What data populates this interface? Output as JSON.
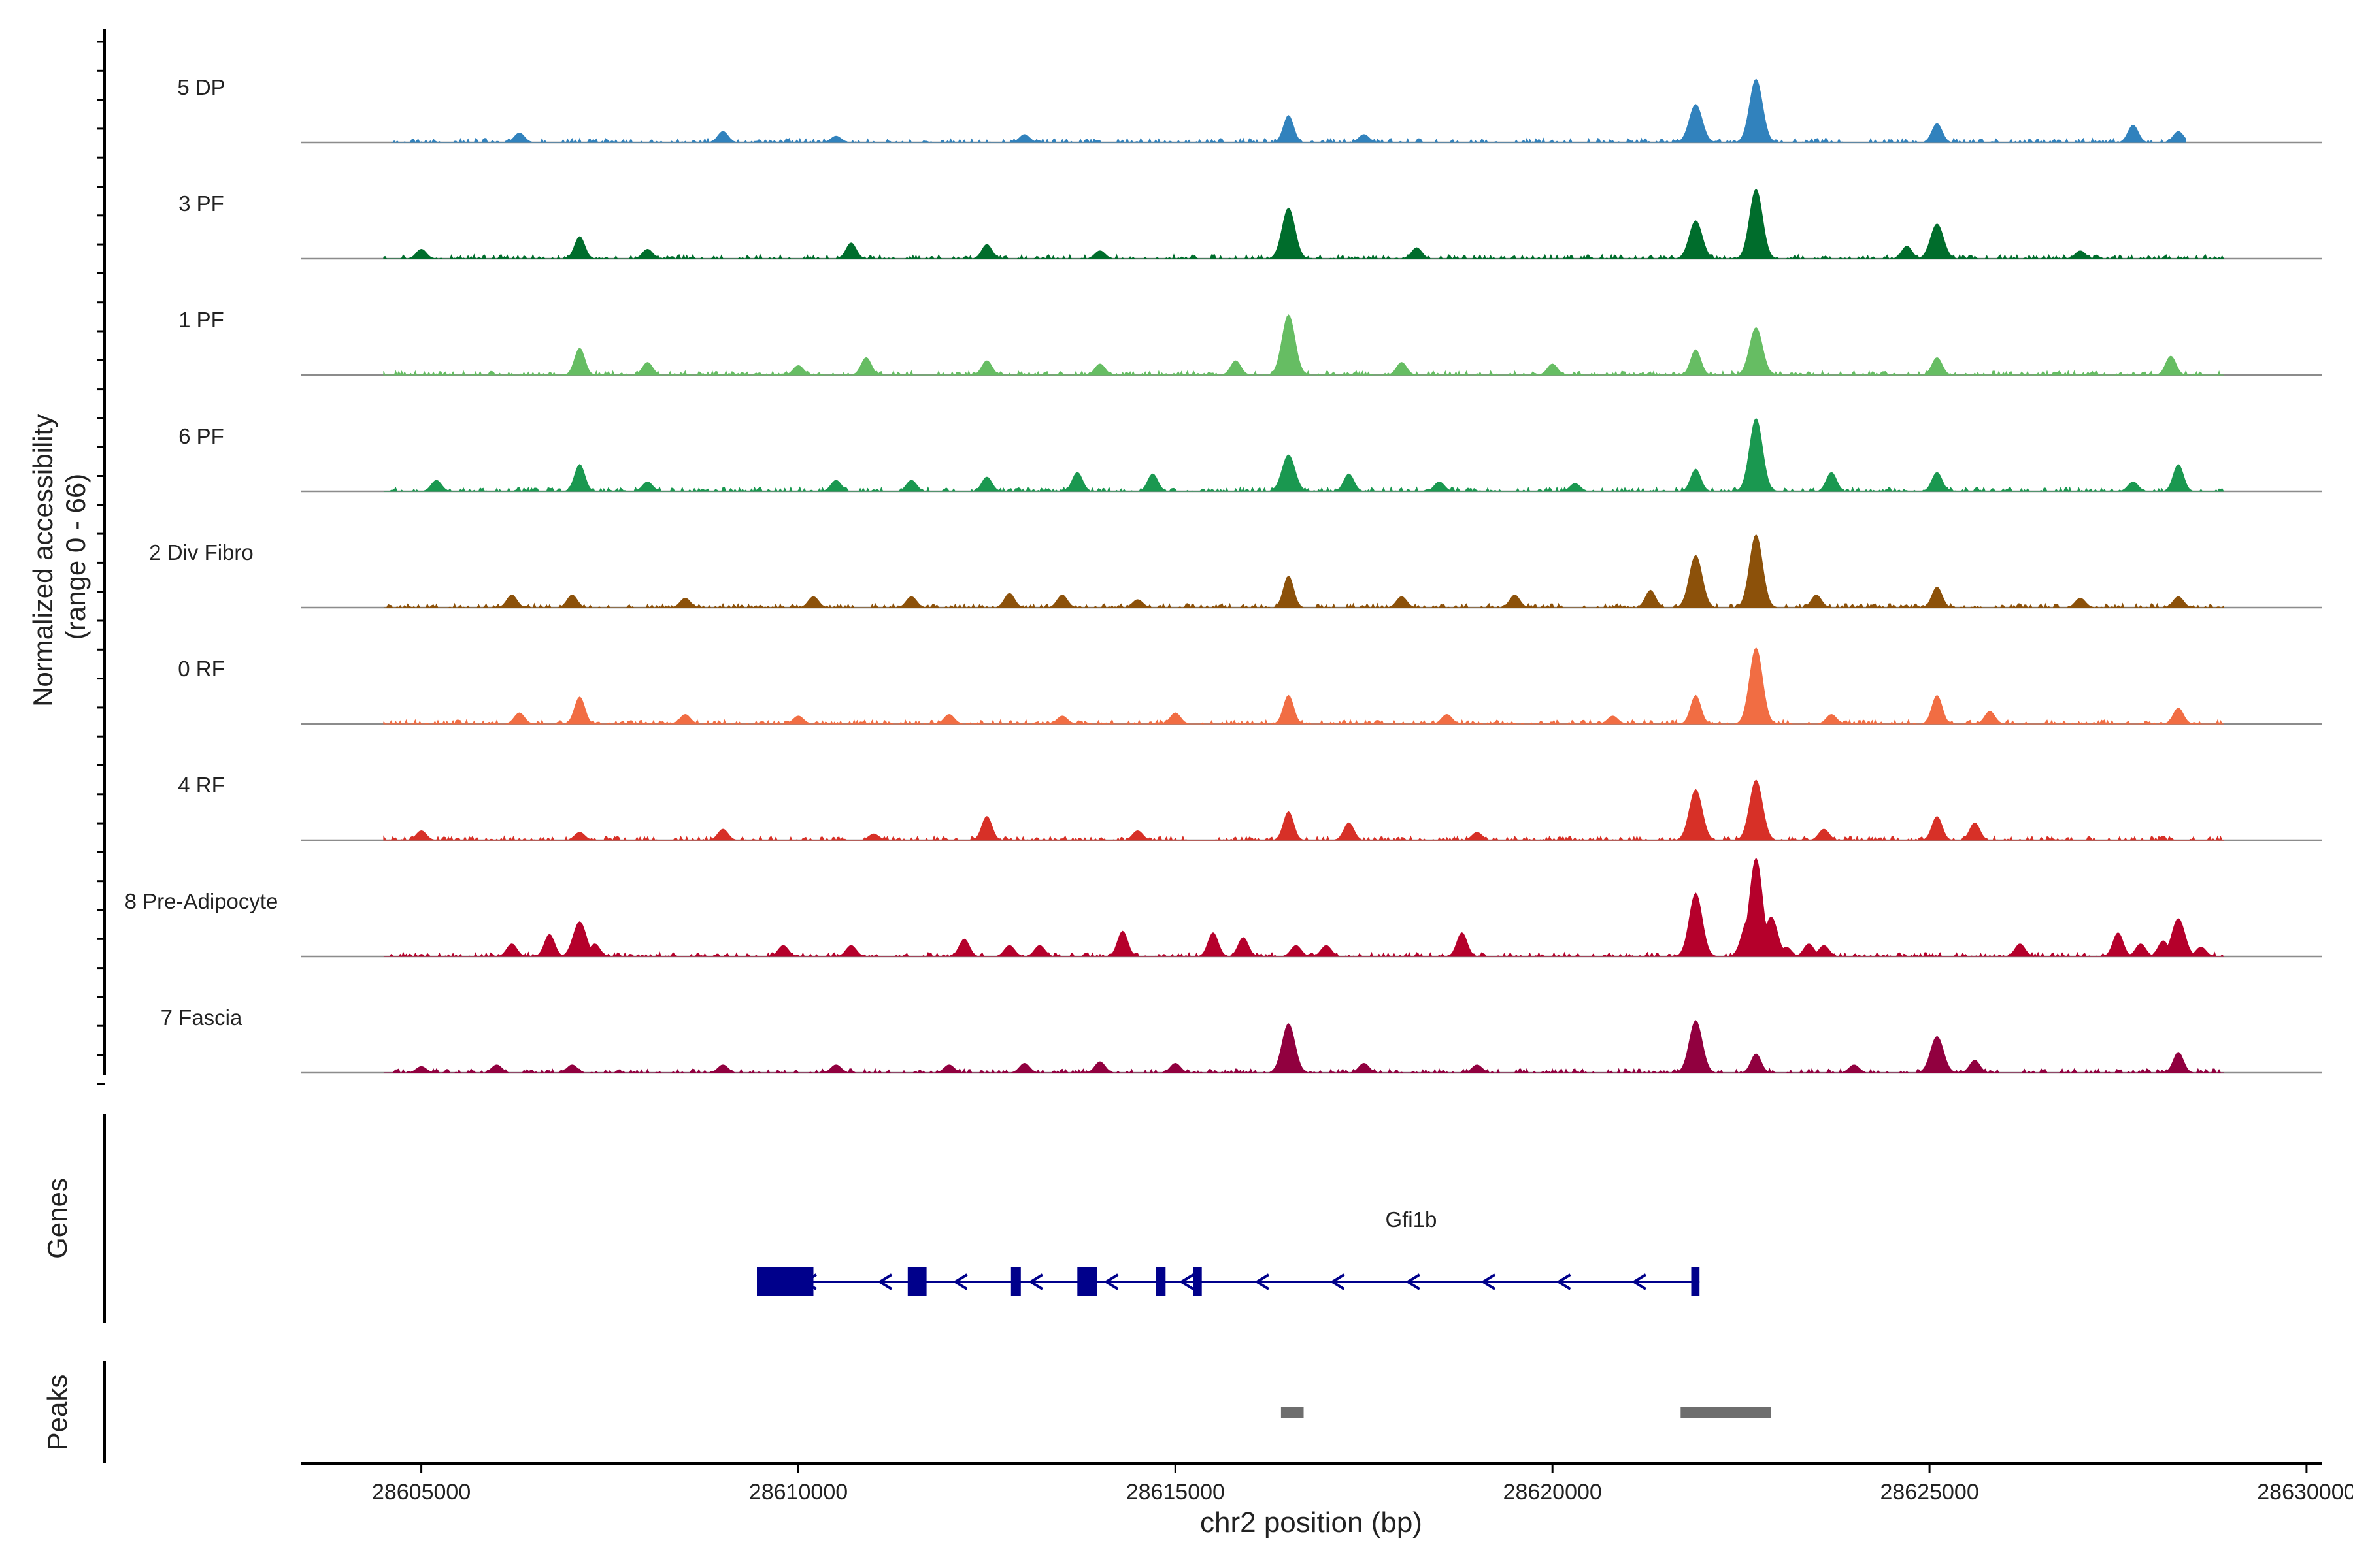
{
  "chart_data": {
    "type": "area",
    "title": "",
    "xlabel": "chr2 position (bp)",
    "ylabel": "Normalized accessibility\n(range 0 - 66)",
    "ylabel_lines": [
      "Normalized accessibility",
      "(range 0 - 66)"
    ],
    "xlim": [
      28603400,
      28630200
    ],
    "xticks": [
      28605000,
      28610000,
      28615000,
      28620000,
      28625000,
      28630000
    ],
    "xtick_labels": [
      "28605000",
      "28610000",
      "28615000",
      "28620000",
      "28625000",
      "28630000"
    ],
    "ylim": [
      0,
      66
    ],
    "tracks": [
      {
        "name": "5 DP",
        "color": "#3182bd",
        "start": 28604600,
        "end": 28628400,
        "peaks": [
          [
            28606300,
            6
          ],
          [
            28609000,
            7
          ],
          [
            28610500,
            4
          ],
          [
            28613000,
            5
          ],
          [
            28616500,
            17
          ],
          [
            28617500,
            5
          ],
          [
            28621900,
            24
          ],
          [
            28622700,
            40
          ],
          [
            28625100,
            12
          ],
          [
            28627700,
            11
          ],
          [
            28628300,
            7
          ]
        ]
      },
      {
        "name": "3 PF",
        "color": "#006d2c",
        "start": 28604500,
        "end": 28628900,
        "peaks": [
          [
            28605000,
            6
          ],
          [
            28607100,
            14
          ],
          [
            28608000,
            6
          ],
          [
            28610700,
            10
          ],
          [
            28612500,
            9
          ],
          [
            28614000,
            5
          ],
          [
            28616500,
            32
          ],
          [
            28618200,
            7
          ],
          [
            28621900,
            24
          ],
          [
            28622700,
            44
          ],
          [
            28624700,
            8
          ],
          [
            28625100,
            22
          ],
          [
            28627000,
            5
          ]
        ]
      },
      {
        "name": "1 PF",
        "color": "#66bd63",
        "start": 28604500,
        "end": 28628900,
        "peaks": [
          [
            28607100,
            17
          ],
          [
            28608000,
            8
          ],
          [
            28610000,
            6
          ],
          [
            28610900,
            11
          ],
          [
            28612500,
            9
          ],
          [
            28614000,
            7
          ],
          [
            28615800,
            9
          ],
          [
            28616500,
            38
          ],
          [
            28618000,
            8
          ],
          [
            28620000,
            7
          ],
          [
            28621900,
            16
          ],
          [
            28622700,
            30
          ],
          [
            28625100,
            11
          ],
          [
            28628200,
            12
          ]
        ]
      },
      {
        "name": "6 PF",
        "color": "#1a9850",
        "start": 28604500,
        "end": 28628900,
        "peaks": [
          [
            28605200,
            7
          ],
          [
            28607100,
            17
          ],
          [
            28608000,
            6
          ],
          [
            28610500,
            7
          ],
          [
            28611500,
            7
          ],
          [
            28612500,
            9
          ],
          [
            28613700,
            12
          ],
          [
            28614700,
            11
          ],
          [
            28616500,
            23
          ],
          [
            28617300,
            11
          ],
          [
            28618500,
            6
          ],
          [
            28620300,
            5
          ],
          [
            28621900,
            14
          ],
          [
            28622700,
            46
          ],
          [
            28623700,
            12
          ],
          [
            28625100,
            12
          ],
          [
            28627700,
            6
          ],
          [
            28628300,
            17
          ]
        ]
      },
      {
        "name": "2 Div Fibro",
        "color": "#8c510a",
        "start": 28604500,
        "end": 28628900,
        "peaks": [
          [
            28606200,
            8
          ],
          [
            28607000,
            8
          ],
          [
            28608500,
            6
          ],
          [
            28610200,
            7
          ],
          [
            28611500,
            7
          ],
          [
            28612800,
            9
          ],
          [
            28613500,
            8
          ],
          [
            28614500,
            5
          ],
          [
            28616500,
            20
          ],
          [
            28618000,
            7
          ],
          [
            28619500,
            8
          ],
          [
            28621300,
            11
          ],
          [
            28621900,
            33
          ],
          [
            28622700,
            46
          ],
          [
            28623500,
            8
          ],
          [
            28625100,
            13
          ],
          [
            28627000,
            6
          ],
          [
            28628300,
            7
          ]
        ]
      },
      {
        "name": "0 RF",
        "color": "#f16d43",
        "start": 28604500,
        "end": 28628900,
        "peaks": [
          [
            28606300,
            7
          ],
          [
            28607100,
            17
          ],
          [
            28608500,
            6
          ],
          [
            28610000,
            5
          ],
          [
            28612000,
            6
          ],
          [
            28613500,
            5
          ],
          [
            28615000,
            7
          ],
          [
            28616500,
            18
          ],
          [
            28618600,
            6
          ],
          [
            28620800,
            5
          ],
          [
            28621900,
            18
          ],
          [
            28622700,
            48
          ],
          [
            28623700,
            6
          ],
          [
            28625100,
            18
          ],
          [
            28625800,
            8
          ],
          [
            28628300,
            10
          ]
        ]
      },
      {
        "name": "4 RF",
        "color": "#d73027",
        "start": 28604500,
        "end": 28628900,
        "peaks": [
          [
            28605000,
            6
          ],
          [
            28607100,
            5
          ],
          [
            28609000,
            7
          ],
          [
            28611000,
            4
          ],
          [
            28612500,
            15
          ],
          [
            28614500,
            6
          ],
          [
            28616500,
            18
          ],
          [
            28617300,
            11
          ],
          [
            28619000,
            5
          ],
          [
            28621900,
            32
          ],
          [
            28622700,
            38
          ],
          [
            28623600,
            7
          ],
          [
            28625100,
            15
          ],
          [
            28625600,
            11
          ]
        ]
      },
      {
        "name": "8 Pre-Adipocyte",
        "color": "#b5002b",
        "start": 28604500,
        "end": 28628900,
        "peaks": [
          [
            28606200,
            8
          ],
          [
            28606700,
            14
          ],
          [
            28607100,
            22
          ],
          [
            28607300,
            8
          ],
          [
            28609800,
            7
          ],
          [
            28610700,
            7
          ],
          [
            28612200,
            11
          ],
          [
            28612800,
            7
          ],
          [
            28613200,
            7
          ],
          [
            28614300,
            16
          ],
          [
            28615500,
            15
          ],
          [
            28615900,
            12
          ],
          [
            28616600,
            7
          ],
          [
            28617000,
            7
          ],
          [
            28618800,
            15
          ],
          [
            28621900,
            40
          ],
          [
            28622600,
            24
          ],
          [
            28622700,
            62
          ],
          [
            28622900,
            25
          ],
          [
            28623100,
            6
          ],
          [
            28623400,
            8
          ],
          [
            28623600,
            7
          ],
          [
            28626200,
            8
          ],
          [
            28627500,
            15
          ],
          [
            28627800,
            8
          ],
          [
            28628100,
            10
          ],
          [
            28628300,
            24
          ],
          [
            28628600,
            6
          ]
        ]
      },
      {
        "name": "7 Fascia",
        "color": "#91003f",
        "start": 28604500,
        "end": 28628900,
        "peaks": [
          [
            28605000,
            4
          ],
          [
            28606000,
            5
          ],
          [
            28607000,
            5
          ],
          [
            28609000,
            5
          ],
          [
            28610500,
            5
          ],
          [
            28612000,
            5
          ],
          [
            28613000,
            6
          ],
          [
            28614000,
            7
          ],
          [
            28615000,
            6
          ],
          [
            28616500,
            31
          ],
          [
            28617500,
            6
          ],
          [
            28619000,
            5
          ],
          [
            28621900,
            33
          ],
          [
            28622700,
            12
          ],
          [
            28624000,
            5
          ],
          [
            28625100,
            23
          ],
          [
            28625600,
            8
          ],
          [
            28628300,
            13
          ]
        ]
      }
    ],
    "genes": [
      {
        "name": "Gfi1b",
        "color": "#00008b",
        "start": 28609500,
        "end": 28621950,
        "strand": "-",
        "exons": [
          [
            28609450,
            28610200
          ],
          [
            28611450,
            28611700
          ],
          [
            28612820,
            28612950
          ],
          [
            28613700,
            28613960
          ],
          [
            28614740,
            28614870
          ],
          [
            28615240,
            28615350
          ],
          [
            28621840,
            28621950
          ]
        ]
      }
    ],
    "peaks_regions": [
      [
        28616400,
        28616700
      ],
      [
        28621700,
        28622900
      ]
    ],
    "panel_labels": {
      "genes": "Genes",
      "peaks": "Peaks"
    }
  }
}
